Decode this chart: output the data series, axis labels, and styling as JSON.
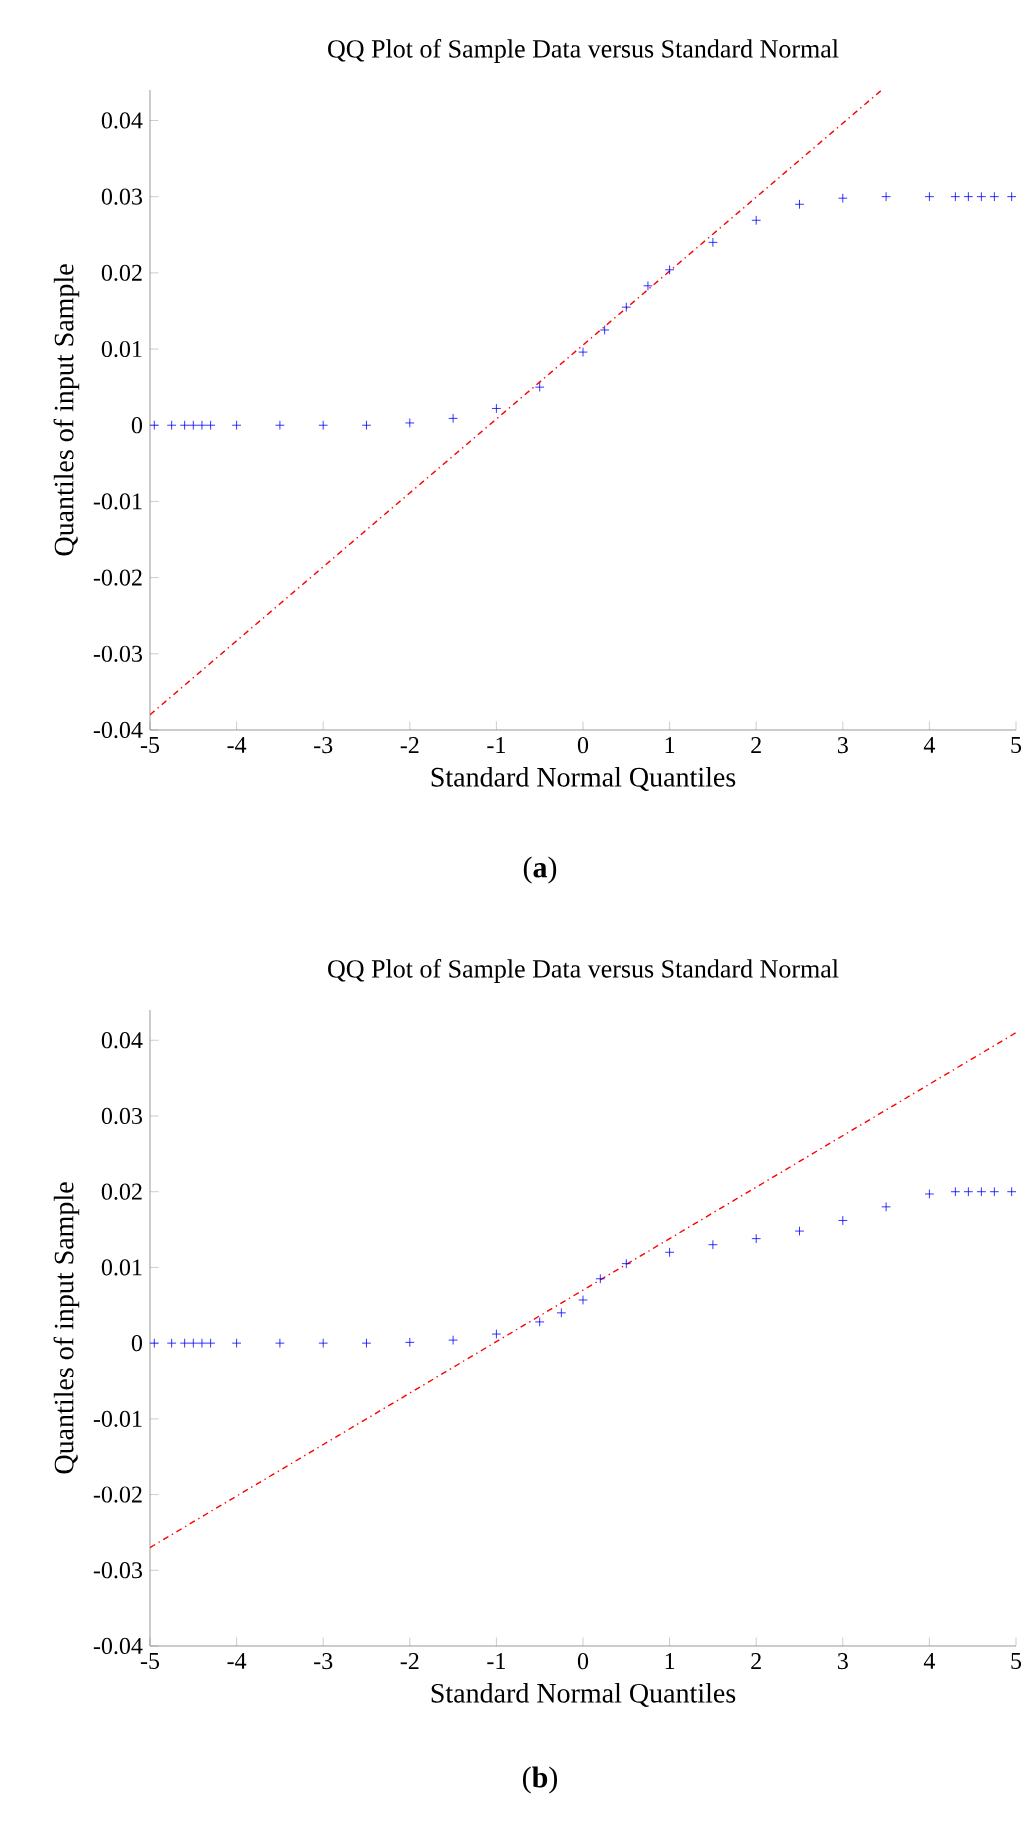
{
  "chart_data": [
    {
      "type": "scatter",
      "title": "QQ Plot of Sample Data versus Standard Normal",
      "xlabel": "Standard Normal Quantiles",
      "ylabel": "Quantiles of input Sample",
      "annotations": [
        "(**a**)"
      ],
      "xlim": [
        -5,
        5
      ],
      "ylim": [
        -0.04,
        0.044
      ],
      "xticks": [
        -5,
        -4,
        -3,
        -2,
        -1,
        0,
        1,
        2,
        3,
        4,
        5
      ],
      "yticks": [
        -0.04,
        -0.03,
        -0.02,
        -0.01,
        0,
        0.01,
        0.02,
        0.03,
        0.04
      ],
      "marker": "cross",
      "series": [
        {
          "color": "#0000ff",
          "x": [
            -4.95,
            -4.75,
            -4.6,
            -4.5,
            -4.4,
            -4.3,
            -4.0,
            -3.5,
            -3.0,
            -2.5,
            -2.0,
            -1.5,
            -1.0,
            -0.5,
            0.0,
            0.25,
            0.5,
            0.75,
            1.0,
            1.5,
            2.0,
            2.5,
            3.0,
            3.5,
            4.0,
            4.3,
            4.45,
            4.6,
            4.75,
            4.95
          ],
          "values": [
            0,
            0,
            0,
            0,
            0,
            0,
            0,
            0,
            0,
            0,
            0.0003,
            0.0009,
            0.0022,
            0.005,
            0.0096,
            0.0125,
            0.0155,
            0.0183,
            0.0204,
            0.024,
            0.0269,
            0.029,
            0.0298,
            0.03,
            0.03,
            0.03,
            0.03,
            0.03,
            0.03,
            0.03
          ]
        },
        {
          "type": "line",
          "color": "#ff0000",
          "line_style": "dashed",
          "marker": "none",
          "x": [
            -5,
            3.45
          ],
          "values": [
            -0.038,
            0.044
          ]
        }
      ]
    },
    {
      "type": "scatter",
      "title": "QQ Plot of Sample Data versus Standard Normal",
      "xlabel": "Standard Normal Quantiles",
      "ylabel": "Quantiles of input Sample",
      "annotations": [
        "(**b**)"
      ],
      "xlim": [
        -5,
        5
      ],
      "ylim": [
        -0.04,
        0.044
      ],
      "xticks": [
        -5,
        -4,
        -3,
        -2,
        -1,
        0,
        1,
        2,
        3,
        4,
        5
      ],
      "yticks": [
        -0.04,
        -0.03,
        -0.02,
        -0.01,
        0,
        0.01,
        0.02,
        0.03,
        0.04
      ],
      "marker": "cross",
      "series": [
        {
          "color": "#0000ff",
          "x": [
            -4.95,
            -4.75,
            -4.6,
            -4.5,
            -4.4,
            -4.3,
            -4.0,
            -3.5,
            -3.0,
            -2.5,
            -2.0,
            -1.5,
            -1.0,
            -0.5,
            -0.25,
            0.0,
            0.2,
            0.5,
            1.0,
            1.5,
            2.0,
            2.5,
            3.0,
            3.5,
            4.0,
            4.3,
            4.45,
            4.6,
            4.75,
            4.95
          ],
          "values": [
            0,
            0,
            0,
            0,
            0,
            0,
            0,
            0,
            0,
            0,
            0.0001,
            0.0004,
            0.0012,
            0.0028,
            0.004,
            0.0057,
            0.0085,
            0.0105,
            0.012,
            0.013,
            0.0138,
            0.0148,
            0.0162,
            0.018,
            0.0197,
            0.02,
            0.02,
            0.02,
            0.02,
            0.02
          ]
        },
        {
          "type": "line",
          "color": "#ff0000",
          "line_style": "dashed",
          "marker": "none",
          "x": [
            -5,
            5
          ],
          "values": [
            -0.027,
            0.041
          ]
        }
      ]
    }
  ]
}
